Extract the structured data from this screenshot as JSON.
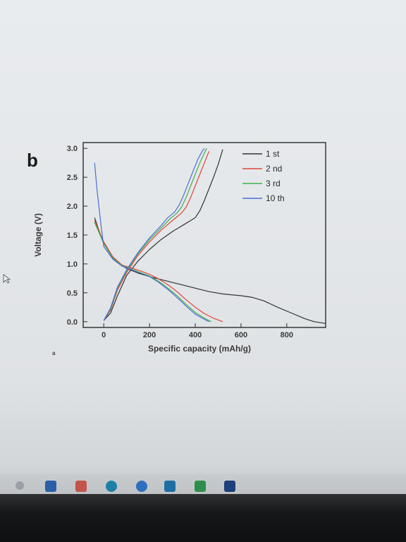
{
  "panel_label": "b",
  "stray_mark": "a",
  "chart_data": {
    "type": "line",
    "xlabel": "Specific capacity (mAh/g)",
    "ylabel": "Voltage (V)",
    "xlim": [
      -90,
      970
    ],
    "ylim": [
      -0.1,
      3.1
    ],
    "xticks": [
      0,
      200,
      400,
      600,
      800
    ],
    "yticks": [
      0.0,
      0.5,
      1.0,
      1.5,
      2.0,
      2.5,
      3.0
    ],
    "xtick_labels": [
      "0",
      "200",
      "400",
      "600",
      "800"
    ],
    "ytick_labels": [
      "0.0",
      "0.5",
      "1.0",
      "1.5",
      "2.0",
      "2.5",
      "3.0"
    ],
    "grid": false,
    "legend_position": "top-right",
    "series": [
      {
        "name": "1 st",
        "color": "#333333",
        "discharge": {
          "x": [
            -40,
            -10,
            20,
            60,
            100,
            150,
            200,
            260,
            320,
            400,
            460,
            520,
            600,
            650,
            700,
            760,
            820,
            880,
            920,
            970
          ],
          "y": [
            1.8,
            1.45,
            1.22,
            1.02,
            0.92,
            0.84,
            0.78,
            0.72,
            0.66,
            0.58,
            0.52,
            0.48,
            0.45,
            0.42,
            0.36,
            0.25,
            0.15,
            0.05,
            0.0,
            -0.03
          ]
        },
        "charge": {
          "x": [
            0,
            30,
            60,
            100,
            150,
            200,
            250,
            300,
            350,
            380,
            400,
            420,
            440,
            460,
            480,
            500,
            520
          ],
          "y": [
            0.02,
            0.15,
            0.45,
            0.8,
            1.05,
            1.25,
            1.42,
            1.56,
            1.68,
            1.75,
            1.8,
            1.92,
            2.1,
            2.3,
            2.5,
            2.72,
            2.98
          ]
        }
      },
      {
        "name": "2 nd",
        "color": "#e0453a",
        "discharge": {
          "x": [
            -40,
            0,
            40,
            80,
            120,
            160,
            200,
            240,
            280,
            320,
            360,
            400,
            440,
            480,
            520
          ],
          "y": [
            1.75,
            1.38,
            1.12,
            0.98,
            0.93,
            0.88,
            0.82,
            0.74,
            0.64,
            0.52,
            0.38,
            0.25,
            0.14,
            0.06,
            0.0
          ]
        },
        "charge": {
          "x": [
            0,
            30,
            60,
            100,
            150,
            200,
            250,
            300,
            340,
            360,
            380,
            400,
            420,
            440,
            460
          ],
          "y": [
            0.02,
            0.2,
            0.55,
            0.85,
            1.15,
            1.38,
            1.58,
            1.75,
            1.88,
            1.98,
            2.15,
            2.35,
            2.55,
            2.75,
            2.95
          ]
        }
      },
      {
        "name": "3 rd",
        "color": "#3fb04a",
        "discharge": {
          "x": [
            -40,
            0,
            40,
            80,
            120,
            160,
            200,
            240,
            280,
            320,
            360,
            400,
            440,
            470
          ],
          "y": [
            1.72,
            1.35,
            1.1,
            0.97,
            0.91,
            0.85,
            0.79,
            0.7,
            0.58,
            0.45,
            0.3,
            0.16,
            0.06,
            0.0
          ]
        },
        "charge": {
          "x": [
            0,
            30,
            60,
            100,
            150,
            200,
            250,
            290,
            320,
            340,
            360,
            380,
            400,
            420,
            440,
            450
          ],
          "y": [
            0.02,
            0.22,
            0.58,
            0.88,
            1.18,
            1.42,
            1.62,
            1.78,
            1.88,
            1.98,
            2.15,
            2.35,
            2.55,
            2.75,
            2.92,
            3.0
          ]
        }
      },
      {
        "name": "10 th",
        "color": "#4a6fd8",
        "discharge": {
          "x": [
            -40,
            -30,
            -20,
            -10,
            0,
            40,
            80,
            120,
            160,
            200,
            240,
            280,
            320,
            360,
            400,
            440,
            460
          ],
          "y": [
            2.75,
            2.3,
            1.95,
            1.6,
            1.3,
            1.08,
            0.96,
            0.9,
            0.84,
            0.78,
            0.68,
            0.56,
            0.42,
            0.27,
            0.13,
            0.04,
            0.0
          ]
        },
        "charge": {
          "x": [
            0,
            30,
            60,
            100,
            150,
            200,
            250,
            280,
            310,
            330,
            350,
            370,
            390,
            410,
            430,
            440
          ],
          "y": [
            0.02,
            0.24,
            0.6,
            0.9,
            1.2,
            1.45,
            1.66,
            1.8,
            1.9,
            2.02,
            2.2,
            2.4,
            2.6,
            2.8,
            2.95,
            3.0
          ]
        }
      }
    ]
  }
}
